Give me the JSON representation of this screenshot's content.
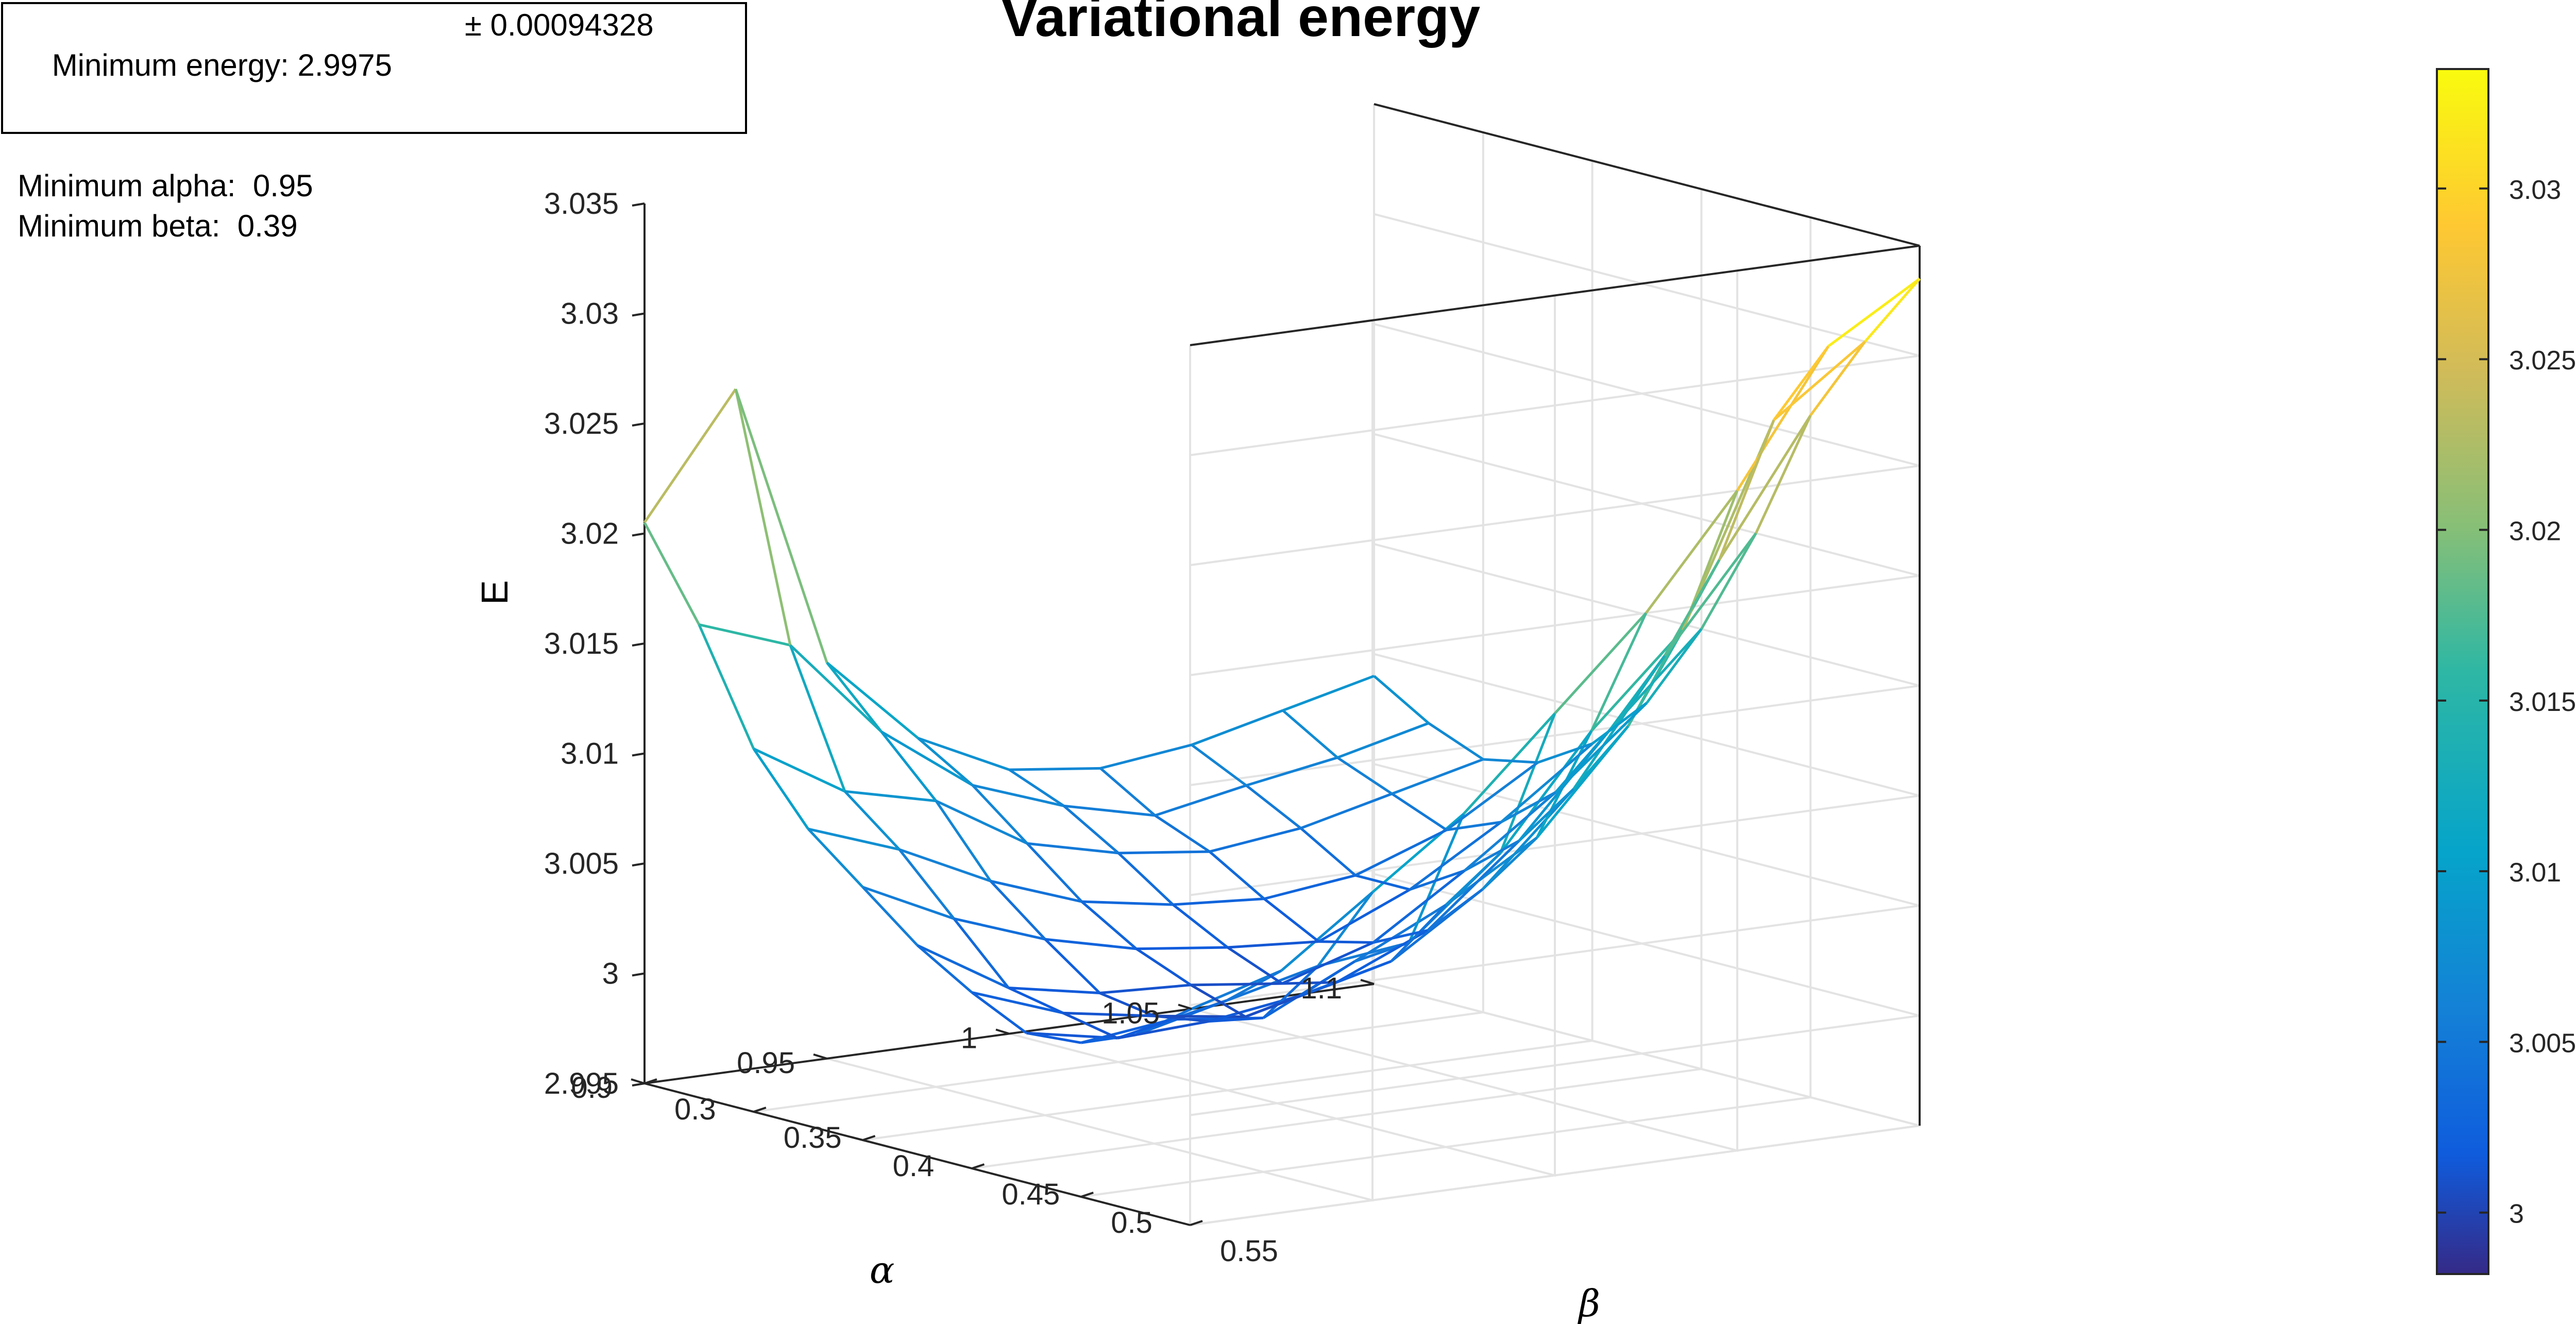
{
  "legend_box": {
    "energy_label": "Minimum energy: 2.9975",
    "energy_error": "± 0.00094328",
    "alpha_label": "Minimum alpha:  0.95",
    "beta_label": "Minimum beta:  0.39"
  },
  "chart_data": {
    "type": "surface-mesh",
    "title": "Variational energy",
    "zlabel": "E",
    "xlabel": "α",
    "ylabel": "β",
    "alpha_ticks": [
      "1.1",
      "1.05",
      "1",
      "0.95",
      "0.9"
    ],
    "beta_ticks": [
      "0.55",
      "0.5",
      "0.45",
      "0.4",
      "0.35",
      "0.3"
    ],
    "e_ticks": [
      "2.995",
      "3",
      "3.005",
      "3.01",
      "3.015",
      "3.02",
      "3.025",
      "3.03",
      "3.035"
    ],
    "colorbar_ticks": [
      "3",
      "3.005",
      "3.01",
      "3.015",
      "3.02",
      "3.025",
      "3.03"
    ],
    "alpha_range": [
      0.9,
      1.1
    ],
    "beta_range": [
      0.3,
      0.55
    ],
    "zlim": [
      2.995,
      3.035
    ],
    "clim": [
      2.9982,
      3.0335
    ],
    "colormap": "parula",
    "grid": true,
    "alpha_values": [
      0.9,
      0.925,
      0.95,
      0.975,
      1.0,
      1.025,
      1.05,
      1.075,
      1.1
    ],
    "beta_values": [
      0.3,
      0.325,
      0.35,
      0.375,
      0.4,
      0.425,
      0.45,
      0.475,
      0.5,
      0.525,
      0.55
    ],
    "energy": [
      [
        3.0205,
        3.0165,
        3.0115,
        3.0085,
        3.0065,
        3.0045,
        3.003,
        3.0018,
        3.002,
        3.003,
        3.0048
      ],
      [
        3.026,
        3.015,
        3.009,
        3.007,
        3.0045,
        3.002,
        3.0015,
        3.001,
        3.0025,
        3.004,
        3.006
      ],
      [
        3.013,
        3.0105,
        3.008,
        3.005,
        3.003,
        3.0012,
        3.0008,
        3.0012,
        3.002,
        3.005,
        3.009
      ],
      [
        3.009,
        3.0075,
        3.0055,
        3.0035,
        3.002,
        3.001,
        3.0002,
        3.0018,
        3.004,
        3.0055,
        3.012
      ],
      [
        3.007,
        3.006,
        3.0045,
        3.0028,
        3.0015,
        3.0005,
        3.0012,
        3.0028,
        3.006,
        3.009,
        3.016
      ],
      [
        3.0065,
        3.005,
        3.004,
        3.0025,
        3.0012,
        3.0018,
        3.003,
        3.0055,
        3.0085,
        3.014,
        3.02
      ],
      [
        3.007,
        3.0058,
        3.0045,
        3.003,
        3.003,
        3.0045,
        3.0065,
        3.0095,
        3.013,
        3.018,
        3.025
      ],
      [
        3.008,
        3.0065,
        3.0055,
        3.0045,
        3.0055,
        3.0075,
        3.011,
        3.015,
        3.02,
        3.027,
        3.031
      ],
      [
        3.009,
        3.0075,
        3.0065,
        3.007,
        3.0085,
        3.011,
        3.015,
        3.02,
        3.026,
        3.03,
        3.0335
      ]
    ]
  }
}
